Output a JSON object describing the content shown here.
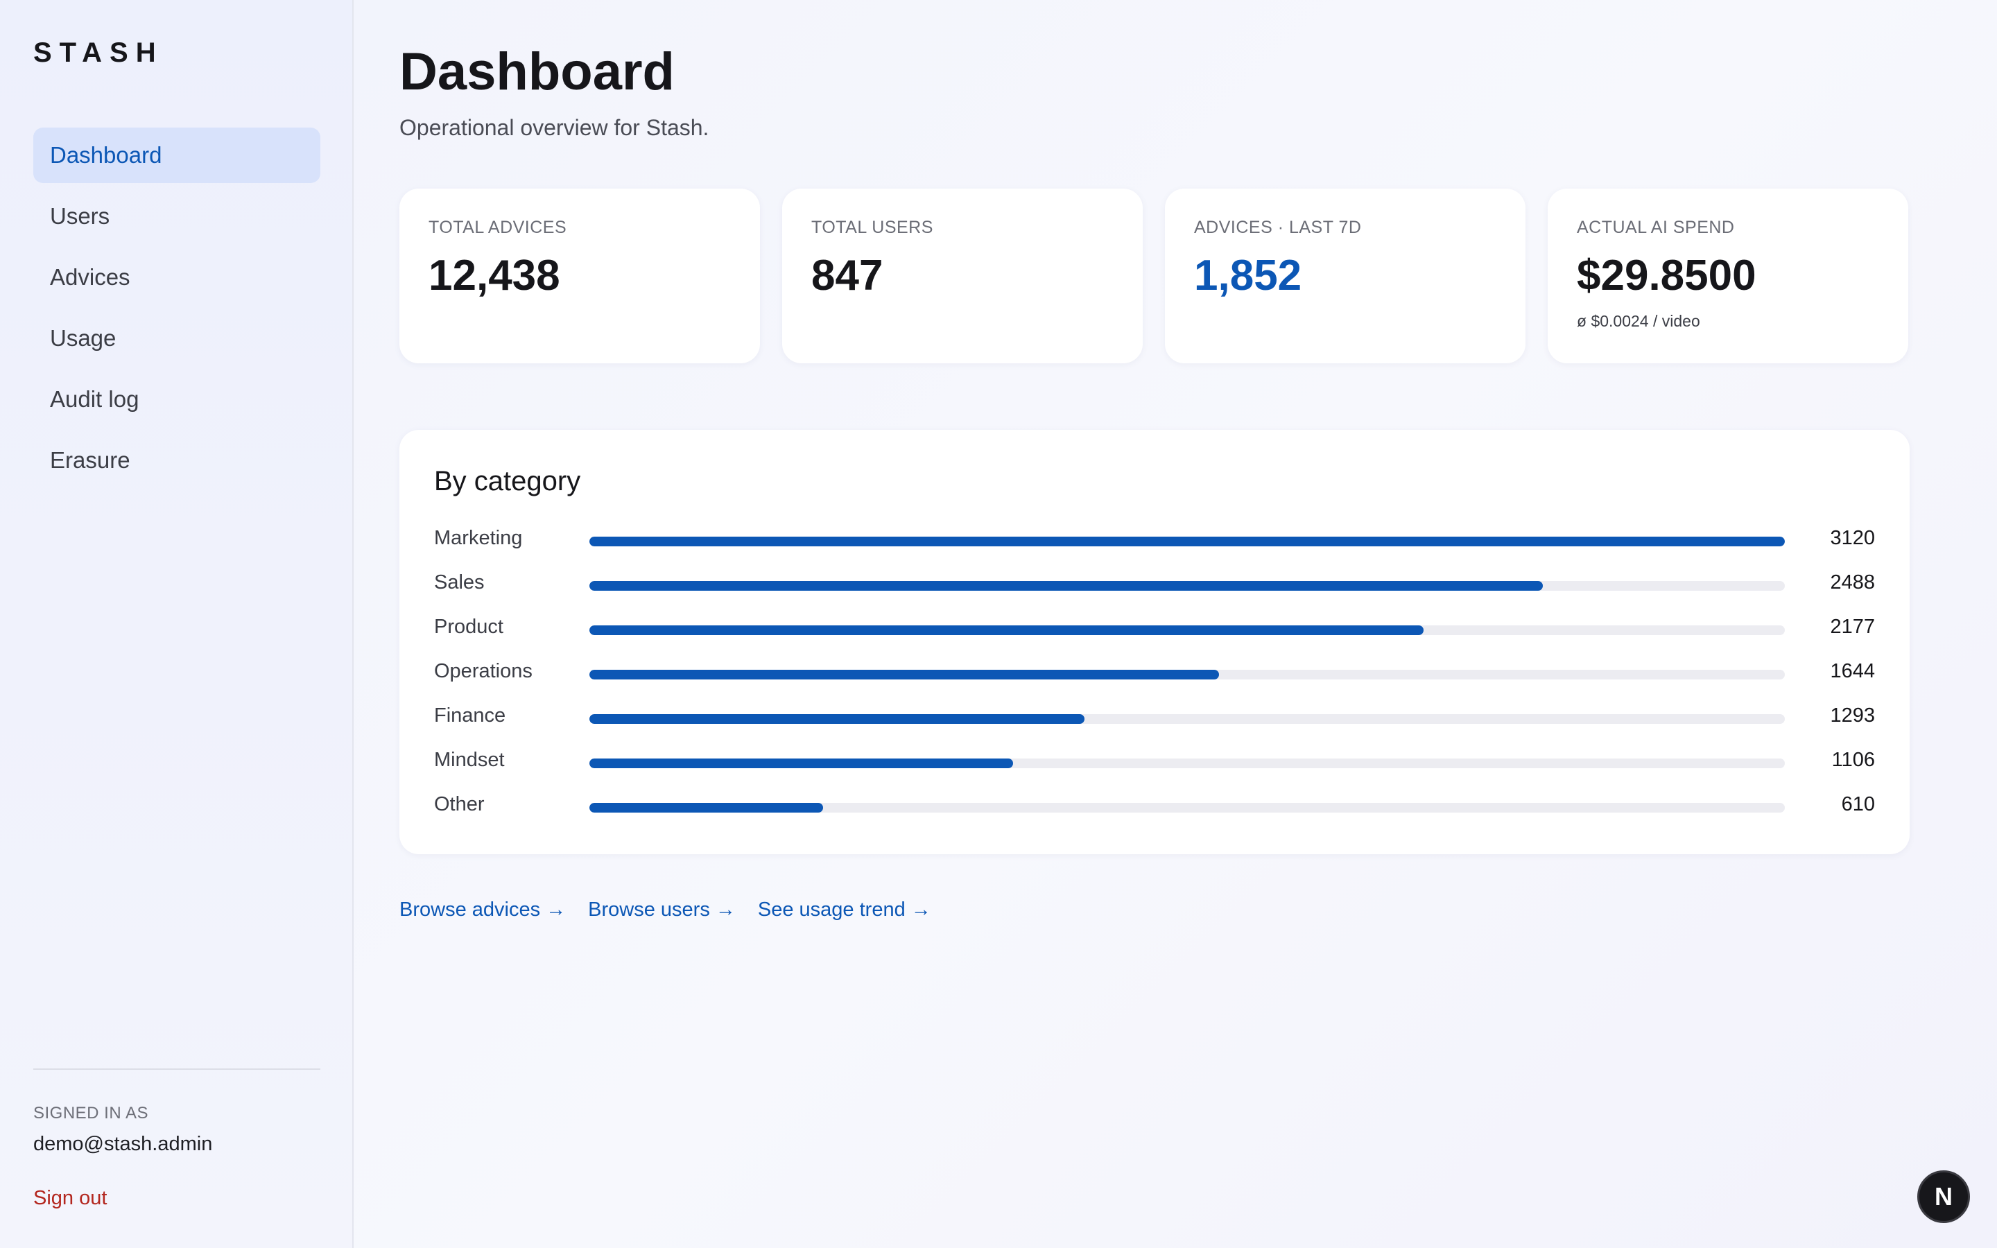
{
  "sidebar": {
    "brand": "STASH",
    "nav": [
      {
        "label": "Dashboard",
        "name": "nav-dashboard",
        "active": true
      },
      {
        "label": "Users",
        "name": "nav-users",
        "active": false
      },
      {
        "label": "Advices",
        "name": "nav-advices",
        "active": false
      },
      {
        "label": "Usage",
        "name": "nav-usage",
        "active": false
      },
      {
        "label": "Audit log",
        "name": "nav-audit-log",
        "active": false
      },
      {
        "label": "Erasure",
        "name": "nav-erasure",
        "active": false
      }
    ],
    "signed_in_label": "SIGNED IN AS",
    "signed_in_email": "demo@stash.admin",
    "sign_out_label": "Sign out"
  },
  "header": {
    "title": "Dashboard",
    "subtitle": "Operational overview for Stash."
  },
  "kpis": [
    {
      "label": "TOTAL ADVICES",
      "value": "12,438",
      "note": "",
      "accent": false
    },
    {
      "label": "TOTAL USERS",
      "value": "847",
      "note": "",
      "accent": false
    },
    {
      "label": "ADVICES · LAST 7D",
      "value": "1,852",
      "note": "",
      "accent": true
    },
    {
      "label": "ACTUAL AI SPEND",
      "value": "$29.8500",
      "note": "ø $0.0024 / video",
      "accent": false
    }
  ],
  "categories": {
    "title": "By category",
    "max": 3120,
    "items": [
      {
        "name": "Marketing",
        "value": 3120
      },
      {
        "name": "Sales",
        "value": 2488
      },
      {
        "name": "Product",
        "value": 2177
      },
      {
        "name": "Operations",
        "value": 1644
      },
      {
        "name": "Finance",
        "value": 1293
      },
      {
        "name": "Mindset",
        "value": 1106
      },
      {
        "name": "Other",
        "value": 610
      }
    ]
  },
  "links": [
    {
      "label": "Browse advices →",
      "name": "browse-advices-link"
    },
    {
      "label": "Browse users →",
      "name": "browse-users-link"
    },
    {
      "label": "See usage trend →",
      "name": "see-usage-trend-link"
    }
  ],
  "fab": {
    "label": "N",
    "icon": "next-logo-icon"
  },
  "colors": {
    "accent": "#0c57b5",
    "danger": "#b3261e",
    "active_nav_bg": "#d8e2fb",
    "bar_track": "#ececf1"
  }
}
